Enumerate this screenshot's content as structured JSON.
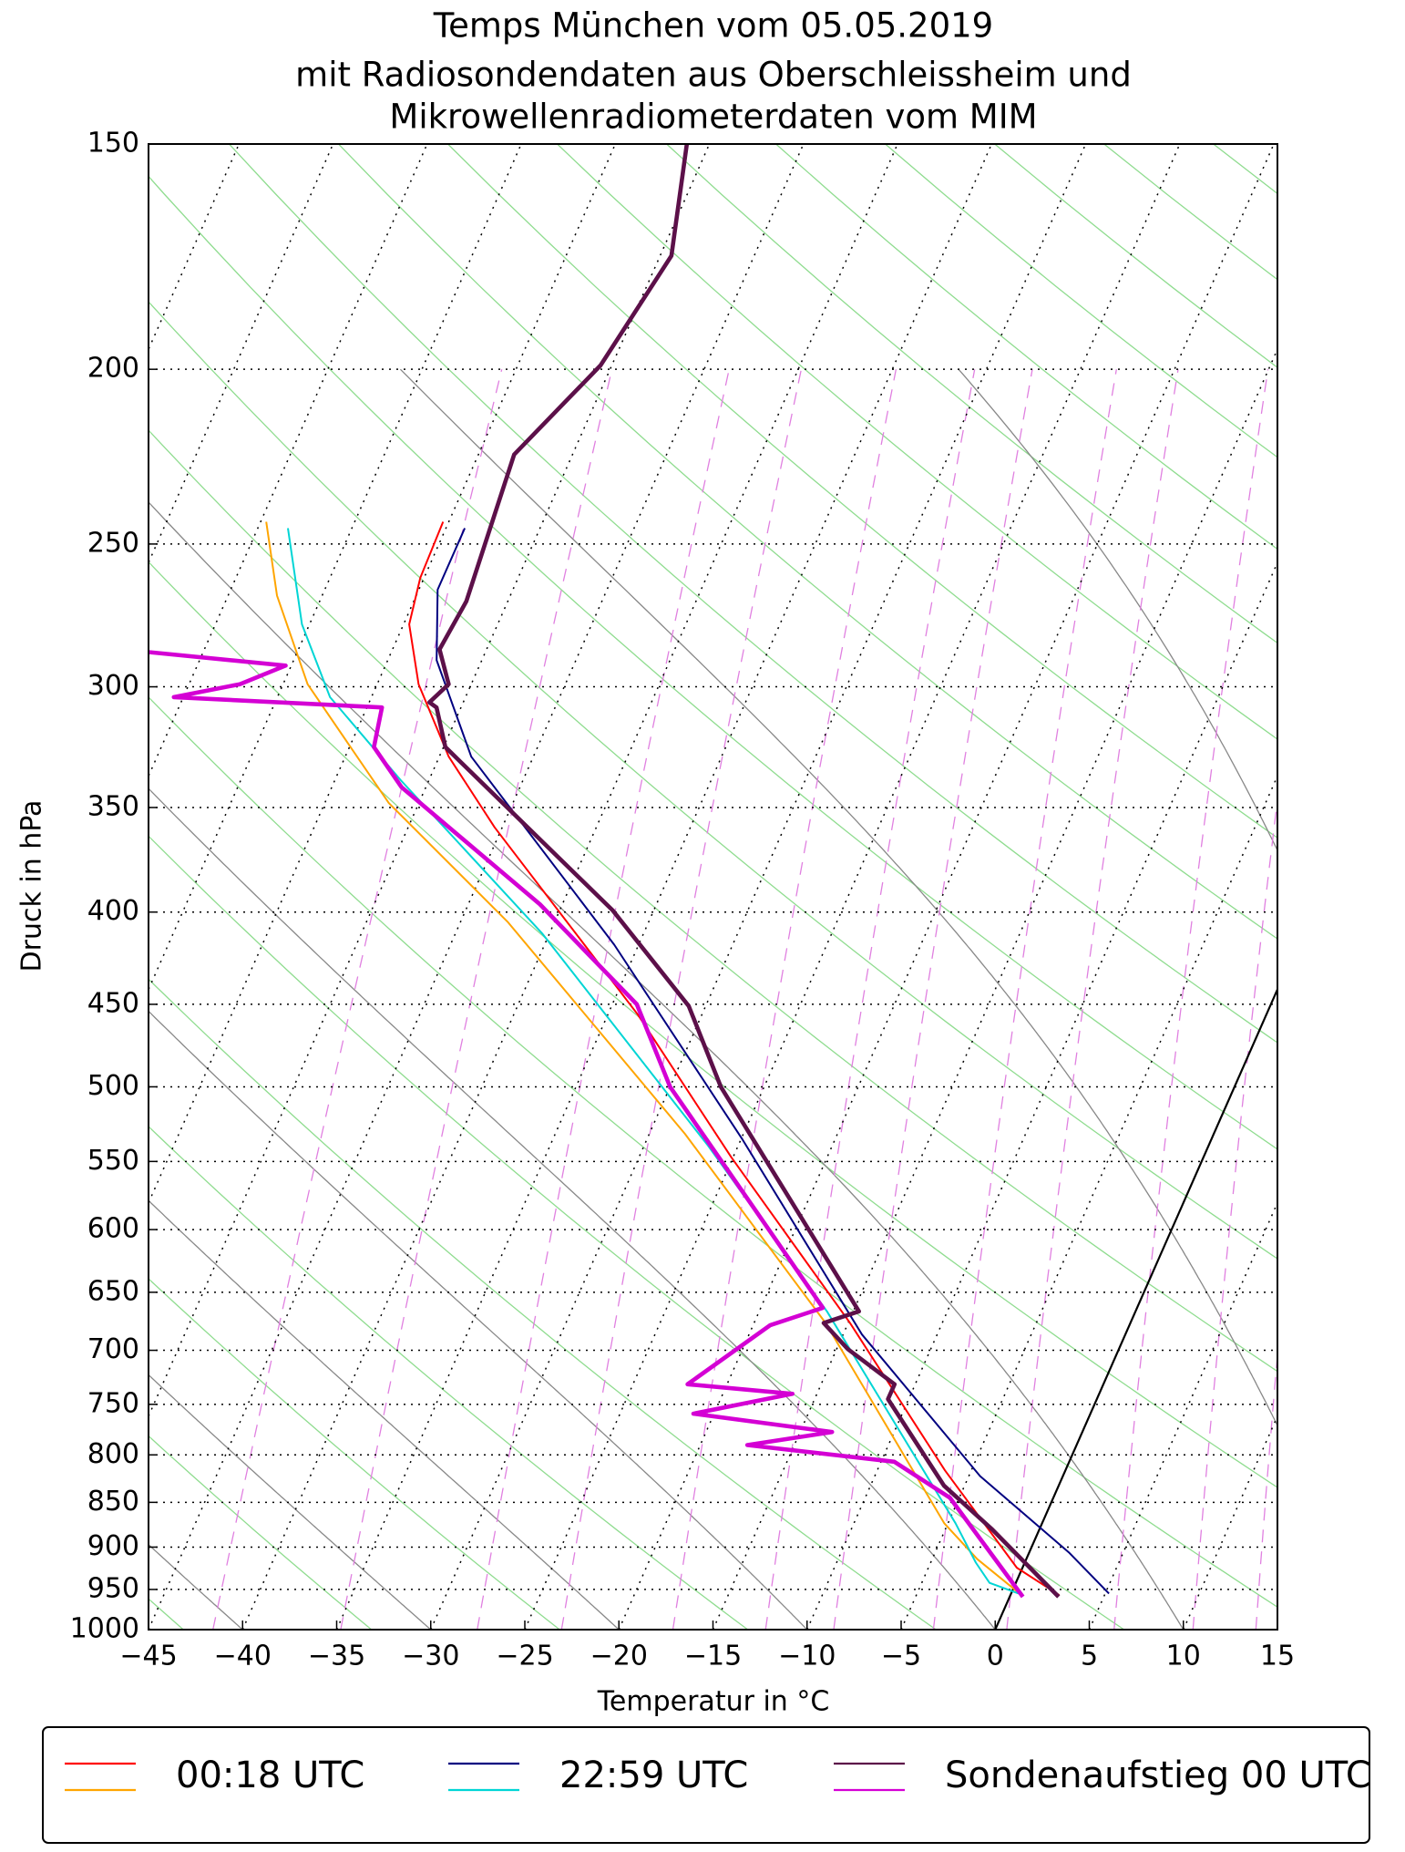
{
  "chart_data": {
    "type": "skewt",
    "title": [
      "Temps München vom 05.05.2019",
      "mit Radiosondendaten aus Oberschleissheim und",
      "Mikrowellenradiometerdaten vom MIM"
    ],
    "x_label": "Temperatur in °C",
    "y_label": "Druck in hPa",
    "xlim": [
      -45,
      15
    ],
    "xticks": [
      {
        "value": -45,
        "label": "−45"
      },
      {
        "value": -40,
        "label": "−40"
      },
      {
        "value": -35,
        "label": "−35"
      },
      {
        "value": -30,
        "label": "−30"
      },
      {
        "value": -25,
        "label": "−25"
      },
      {
        "value": -20,
        "label": "−20"
      },
      {
        "value": -15,
        "label": "−15"
      },
      {
        "value": -10,
        "label": "−10"
      },
      {
        "value": -5,
        "label": "−5"
      },
      0,
      5,
      10,
      15
    ],
    "ylim": [
      1000,
      150
    ],
    "yticks": [
      150,
      200,
      250,
      300,
      350,
      400,
      450,
      500,
      550,
      600,
      650,
      700,
      750,
      800,
      850,
      900,
      950,
      1000
    ],
    "log_scale": "y",
    "grid": true,
    "series": [
      {
        "name": "00:18 UTC",
        "temperature": {
          "color": "#ff0000",
          "pressure": [
            957,
            924,
            816,
            676,
            547,
            456,
            359,
            328,
            299,
            277,
            261,
            243
          ],
          "values": [
            2.6,
            -0.3,
            -6.4,
            -14.9,
            -25.1,
            -33.4,
            -45.4,
            -49.5,
            -52.8,
            -54.7,
            -55.2,
            -55.3
          ]
        },
        "dewpoint": {
          "color": "#ffa500",
          "pressure": [
            957,
            914,
            873,
            676,
            531,
            405,
            348,
            299,
            267,
            243
          ],
          "values": [
            0.6,
            -2.6,
            -5.2,
            -16.2,
            -28.1,
            -42.5,
            -51.6,
            -58.7,
            -62.4,
            -64.7
          ]
        }
      },
      {
        "name": "22:59 UTC",
        "temperature": {
          "color": "#000080",
          "pressure": [
            955,
            906,
            822,
            686,
            535,
            417,
            328,
            290,
            265,
            245
          ],
          "values": [
            5.2,
            2.1,
            -4.4,
            -14.0,
            -24.9,
            -36.3,
            -48.3,
            -52.4,
            -54.0,
            -54.0
          ]
        },
        "dewpoint": {
          "color": "#00d5d5",
          "pressure": [
            955,
            942,
            918,
            873,
            666,
            539,
            411,
            338,
            304,
            277,
            245
          ],
          "values": [
            0.4,
            -1.4,
            -2.6,
            -4.6,
            -16.4,
            -26.6,
            -40.4,
            -51.5,
            -57.2,
            -60.4,
            -63.4
          ]
        }
      },
      {
        "name": "Sondenaufstieg 00 UTC",
        "temperature": {
          "color": "#5c1049",
          "pressure": [
            959,
            880,
            832,
            745,
            731,
            699,
            676,
            666,
            500,
            451,
            399,
            324,
            308,
            306,
            299,
            286,
            269,
            223,
            199,
            173,
            150
          ],
          "values": [
            2.6,
            -2.5,
            -6.1,
            -11.1,
            -11.1,
            -14.4,
            -16.3,
            -14.7,
            -27.3,
            -30.9,
            -37.2,
            -49.9,
            -51.3,
            -51.8,
            -51.2,
            -52.5,
            -52.2,
            -53.1,
            -50.6,
            -49.4,
            -51.2
          ]
        },
        "dewpoint": {
          "color": "#d400d4",
          "pressure": [
            959,
            845,
            807,
            790,
            777,
            759,
            740,
            731,
            678,
            663,
            500,
            450,
            396,
            341,
            324,
            308,
            304,
            299,
            292,
            287
          ],
          "values": [
            0.7,
            -5.5,
            -9.3,
            -17.5,
            -13.3,
            -21.1,
            -16.3,
            -22.1,
            -19.1,
            -16.7,
            -30.0,
            -33.7,
            -41.2,
            -51.3,
            -53.7,
            -54.2,
            -65.5,
            -62.3,
            -60.3,
            -67.9
          ]
        }
      }
    ]
  }
}
